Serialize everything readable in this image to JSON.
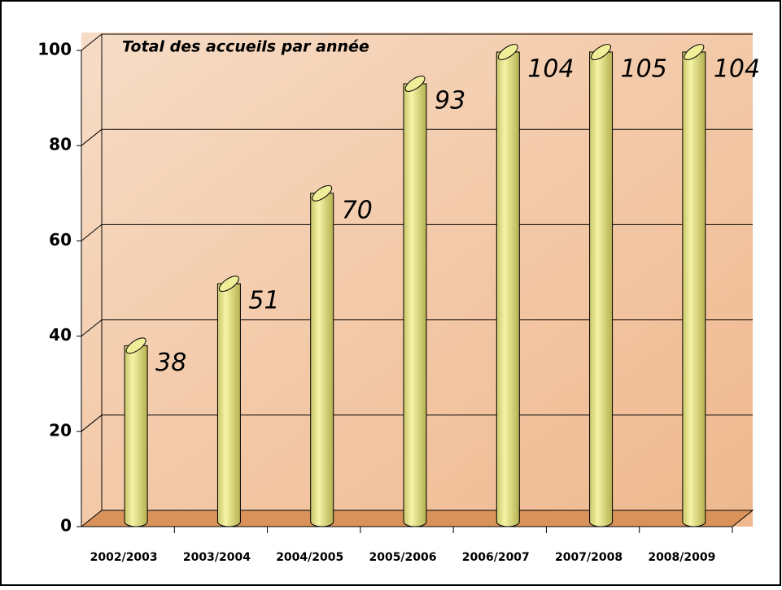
{
  "chart_data": {
    "type": "bar3d",
    "title": "Total des accueils par année",
    "categories": [
      "2002/2003",
      "2003/2004",
      "2004/2005",
      "2005/2006",
      "2006/2007",
      "2007/2008",
      "2008/2009"
    ],
    "values": [
      38,
      51,
      70,
      93,
      104,
      105,
      104
    ],
    "color": "#f0ee98",
    "ylim": [
      0,
      100
    ],
    "yticks": [
      0,
      20,
      40,
      60,
      80,
      100
    ],
    "grid": true
  }
}
